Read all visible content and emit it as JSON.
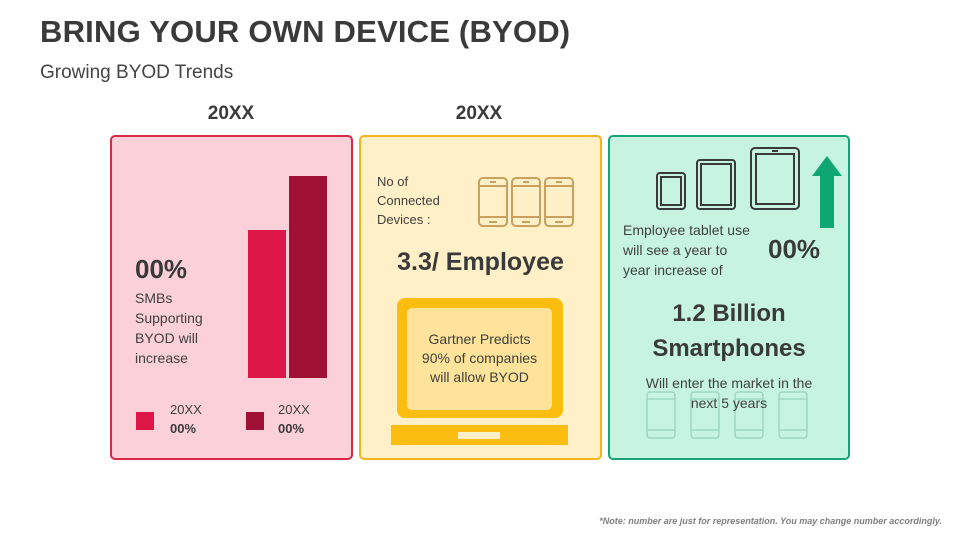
{
  "header": {
    "title": "BRING YOUR OWN DEVICE (BYOD)",
    "subtitle": "Growing BYOD Trends"
  },
  "year_labels": [
    "20XX",
    "20XX"
  ],
  "panel_smb": {
    "percent": "00%",
    "description_lines": [
      "SMBs",
      "Supporting",
      "BYOD will",
      "increase"
    ],
    "legend": [
      {
        "year": "20XX",
        "value": "00%",
        "color": "#dc1646"
      },
      {
        "year": "20XX",
        "value": "00%",
        "color": "#a01034"
      }
    ],
    "bar_relative_heights": [
      0.73,
      1.0
    ]
  },
  "panel_devices": {
    "label_lines": [
      "No of",
      "Connected",
      "Devices :"
    ],
    "value": "3.3/ Employee",
    "laptop_text_lines": [
      "Gartner Predicts",
      "90% of companies",
      "will allow BYOD"
    ],
    "phone_icon_count": 3
  },
  "panel_tablets": {
    "description_lines": [
      "Employee tablet use",
      "will see a year to",
      "year increase of"
    ],
    "percent": "00%",
    "headline_lines": [
      "1.2 Billion",
      "Smartphones"
    ],
    "footer_lines": [
      "Will enter the market in the",
      "next 5 years"
    ],
    "accent_color": "#0ea672"
  },
  "footnote": "*Note: number are just for representation. You may change number accordingly."
}
